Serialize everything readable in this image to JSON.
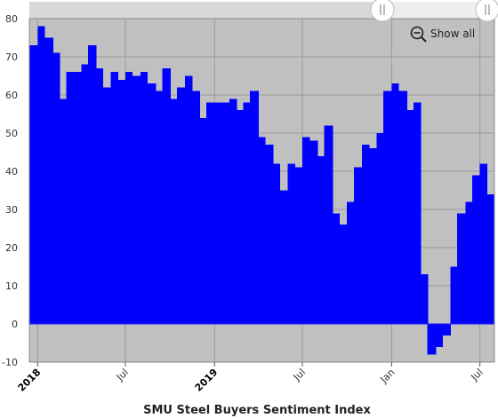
{
  "chart_data": {
    "type": "area",
    "step": true,
    "xlabel": "SMU Steel Buyers Sentiment Index",
    "ylabel": "",
    "ylim": [
      -10,
      80
    ],
    "yticks": [
      -10,
      0,
      10,
      20,
      30,
      40,
      50,
      60,
      70,
      80
    ],
    "grid": true,
    "fill_color": "#0000ff",
    "plot_background": "#c0c0c0",
    "x_start": "2017-12-15",
    "x_end": "2020-07-31",
    "xticks": [
      {
        "date": "2018-01-01",
        "label": "2018",
        "major": true
      },
      {
        "date": "2018-07-01",
        "label": "Jul",
        "major": false
      },
      {
        "date": "2019-01-01",
        "label": "2019",
        "major": true
      },
      {
        "date": "2019-07-01",
        "label": "Jul",
        "major": false
      },
      {
        "date": "2020-01-01",
        "label": "Jan",
        "major": false
      },
      {
        "date": "2020-07-01",
        "label": "Jul",
        "major": false
      }
    ],
    "x": [
      "2017-12-15",
      "2018-01-01",
      "2018-01-15",
      "2018-02-01",
      "2018-02-15",
      "2018-03-01",
      "2018-03-15",
      "2018-04-01",
      "2018-04-15",
      "2018-05-01",
      "2018-05-15",
      "2018-06-01",
      "2018-06-15",
      "2018-07-01",
      "2018-07-15",
      "2018-08-01",
      "2018-08-15",
      "2018-09-01",
      "2018-09-15",
      "2018-10-01",
      "2018-10-15",
      "2018-11-01",
      "2018-11-15",
      "2018-12-01",
      "2018-12-15",
      "2019-01-01",
      "2019-01-15",
      "2019-02-01",
      "2019-02-15",
      "2019-03-01",
      "2019-03-15",
      "2019-04-01",
      "2019-04-15",
      "2019-05-01",
      "2019-05-15",
      "2019-06-01",
      "2019-06-15",
      "2019-07-01",
      "2019-07-15",
      "2019-08-01",
      "2019-08-15",
      "2019-09-01",
      "2019-09-15",
      "2019-10-01",
      "2019-10-15",
      "2019-11-01",
      "2019-11-15",
      "2019-12-01",
      "2019-12-15",
      "2020-01-01",
      "2020-01-15",
      "2020-02-01",
      "2020-02-15",
      "2020-03-01",
      "2020-03-15",
      "2020-04-01",
      "2020-04-15",
      "2020-05-01",
      "2020-05-15",
      "2020-06-01",
      "2020-06-15",
      "2020-07-01",
      "2020-07-15"
    ],
    "values": [
      73,
      78,
      75,
      71,
      59,
      66,
      66,
      68,
      73,
      67,
      62,
      66,
      64,
      66,
      65,
      66,
      63,
      61,
      67,
      59,
      62,
      65,
      61,
      54,
      58,
      58,
      58,
      59,
      56,
      58,
      61,
      49,
      47,
      42,
      35,
      42,
      41,
      49,
      48,
      44,
      52,
      29,
      26,
      32,
      41,
      47,
      46,
      50,
      61,
      63,
      61,
      56,
      58,
      13,
      -8,
      -6,
      -3,
      15,
      29,
      32,
      39,
      42,
      34
    ]
  },
  "controls": {
    "show_all_label": "Show all",
    "zoom_icon": "zoom-out-magnifier-icon",
    "range_handle_left": "range-handle-left",
    "range_handle_right": "range-handle-right"
  }
}
